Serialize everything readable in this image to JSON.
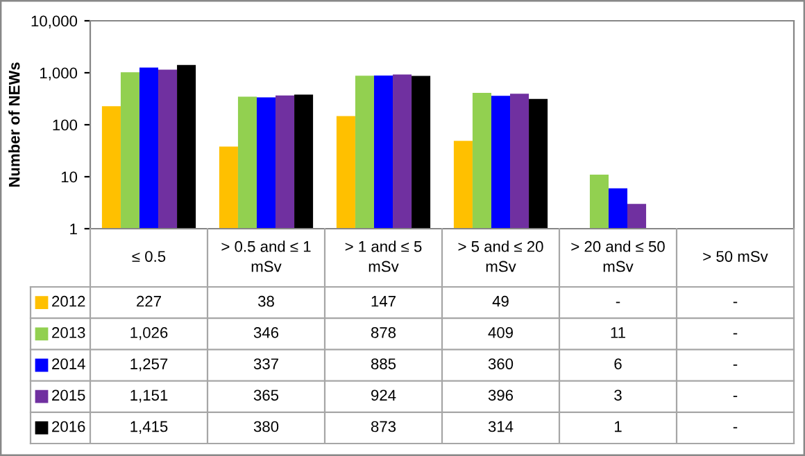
{
  "chart_data": {
    "type": "bar",
    "ylabel": "Number of NEWs",
    "categories": [
      "≤ 0.5",
      "> 0.5 and ≤ 1 mSv",
      "> 1 and ≤ 5 mSv",
      "> 5 and ≤ 20 mSv",
      "> 20 and ≤ 50 mSv",
      "> 50 mSv"
    ],
    "series": [
      {
        "name": "2012",
        "color": "#ffc000",
        "values": [
          227,
          38,
          147,
          49,
          null,
          null
        ],
        "value_labels": [
          "227",
          "38",
          "147",
          "49",
          "-",
          "-"
        ]
      },
      {
        "name": "2013",
        "color": "#92d050",
        "values": [
          1026,
          346,
          878,
          409,
          11,
          null
        ],
        "value_labels": [
          "1,026",
          "346",
          "878",
          "409",
          "11",
          "-"
        ]
      },
      {
        "name": "2014",
        "color": "#0000ff",
        "values": [
          1257,
          337,
          885,
          360,
          6,
          null
        ],
        "value_labels": [
          "1,257",
          "337",
          "885",
          "360",
          "6",
          "-"
        ]
      },
      {
        "name": "2015",
        "color": "#7030a0",
        "values": [
          1151,
          365,
          924,
          396,
          3,
          null
        ],
        "value_labels": [
          "1,151",
          "365",
          "924",
          "396",
          "3",
          "-"
        ]
      },
      {
        "name": "2016",
        "color": "#000000",
        "values": [
          1415,
          380,
          873,
          314,
          1,
          null
        ],
        "value_labels": [
          "1,415",
          "380",
          "873",
          "314",
          "1",
          "-"
        ]
      }
    ],
    "log": true,
    "ylim": [
      1,
      10000
    ],
    "yticks": [
      1,
      10,
      100,
      {
        "value": 1000,
        "label": "1,000"
      },
      {
        "value": 10000,
        "label": "10,000"
      }
    ],
    "grid": false,
    "legend": "bottom"
  }
}
